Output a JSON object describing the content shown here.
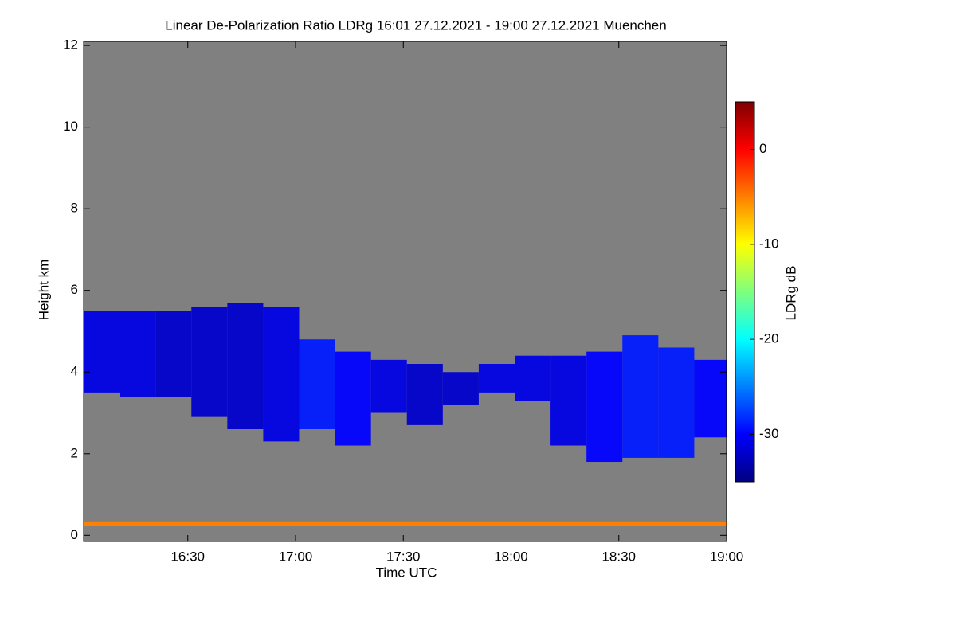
{
  "chart_data": {
    "type": "heatmap",
    "title": "Linear De-Polarization Ratio LDRg   16:01 27.12.2021 - 19:00 27.12.2021 Muenchen",
    "x_label": "Time UTC",
    "y_label": "Height km",
    "colorbar_label": "LDRg dB",
    "xlim": [
      "16:01",
      "19:00"
    ],
    "xticks": [
      "16:30",
      "17:00",
      "17:30",
      "18:00",
      "18:30",
      "19:00"
    ],
    "ylim": [
      -0.15,
      12.1
    ],
    "yticks": [
      0,
      2,
      4,
      6,
      8,
      10,
      12
    ],
    "clim": [
      -35,
      5
    ],
    "cticks": [
      -30,
      -20,
      -10,
      0
    ],
    "colormap": [
      "#00007f",
      "#0000ff",
      "#007fff",
      "#00ffff",
      "#7fff7f",
      "#ffff00",
      "#ff7f00",
      "#ff0000",
      "#7f0000"
    ],
    "background": "#808080",
    "x_bins": [
      "16:01",
      "16:11",
      "16:21",
      "16:31",
      "16:41",
      "16:51",
      "17:01",
      "17:11",
      "17:21",
      "17:31",
      "17:41",
      "17:51",
      "18:01",
      "18:11",
      "18:21",
      "18:31",
      "18:41",
      "18:51",
      "19:00"
    ],
    "cloud_base": [
      3.5,
      3.4,
      3.4,
      2.9,
      2.6,
      2.3,
      2.6,
      2.2,
      3.0,
      2.7,
      3.2,
      3.5,
      3.3,
      2.2,
      1.8,
      1.9,
      1.9,
      2.4
    ],
    "cloud_top": [
      5.5,
      5.5,
      5.5,
      5.6,
      5.7,
      5.6,
      4.8,
      4.5,
      4.3,
      4.2,
      4.0,
      4.2,
      4.4,
      4.4,
      4.5,
      4.9,
      4.6,
      4.3
    ],
    "cloud_ldr": [
      -31,
      -31,
      -32,
      -32,
      -32,
      -31,
      -29,
      -30,
      -31,
      -32,
      -32,
      -31,
      -31,
      -31,
      -30,
      -29,
      -29,
      -30
    ],
    "clutter_base": 0.24,
    "clutter_top": 0.34,
    "clutter_ldr": -5
  }
}
